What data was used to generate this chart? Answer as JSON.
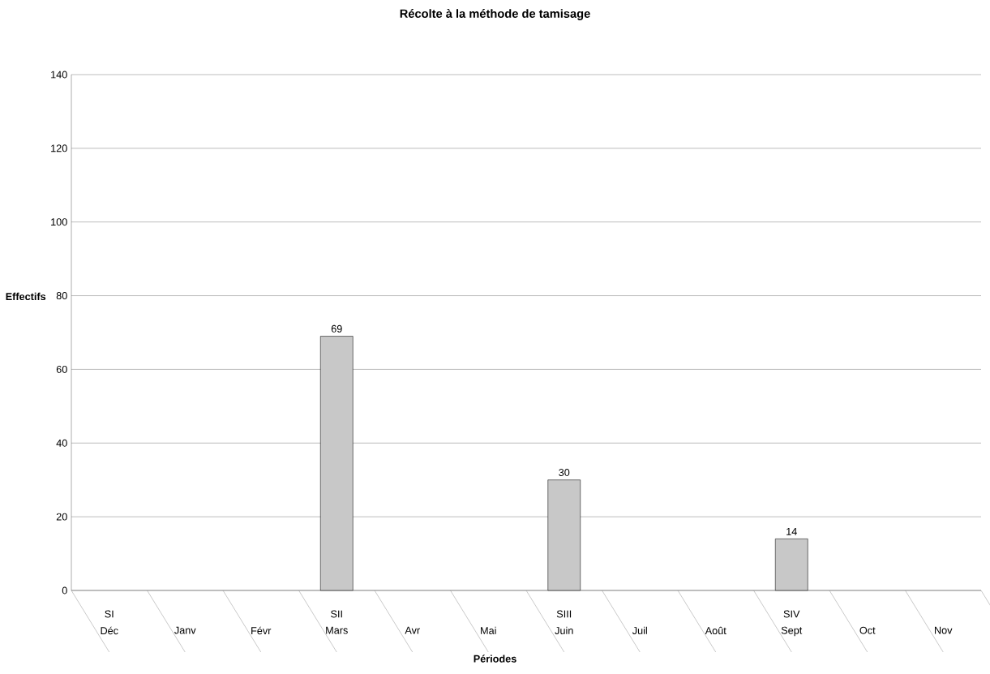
{
  "chart_data": {
    "type": "bar",
    "title": "Récolte à la méthode de tamisage",
    "xlabel": "Périodes",
    "ylabel": "Effectifs",
    "categories": [
      "Déc",
      "Janv",
      "Févr",
      "Mars",
      "Avr",
      "Mai",
      "Juin",
      "Juil",
      "Août",
      "Sept",
      "Oct",
      "Nov"
    ],
    "values": [
      null,
      null,
      null,
      69,
      null,
      null,
      30,
      null,
      null,
      14,
      null,
      null
    ],
    "color": "#c8c8c8",
    "data_labels": true,
    "annotations": [
      "SI",
      "SII",
      "SIII",
      "SIV"
    ],
    "ylim": [
      0,
      140
    ],
    "yticks": [
      0,
      20,
      40,
      60,
      80,
      100,
      120,
      140
    ],
    "grid": "y"
  }
}
